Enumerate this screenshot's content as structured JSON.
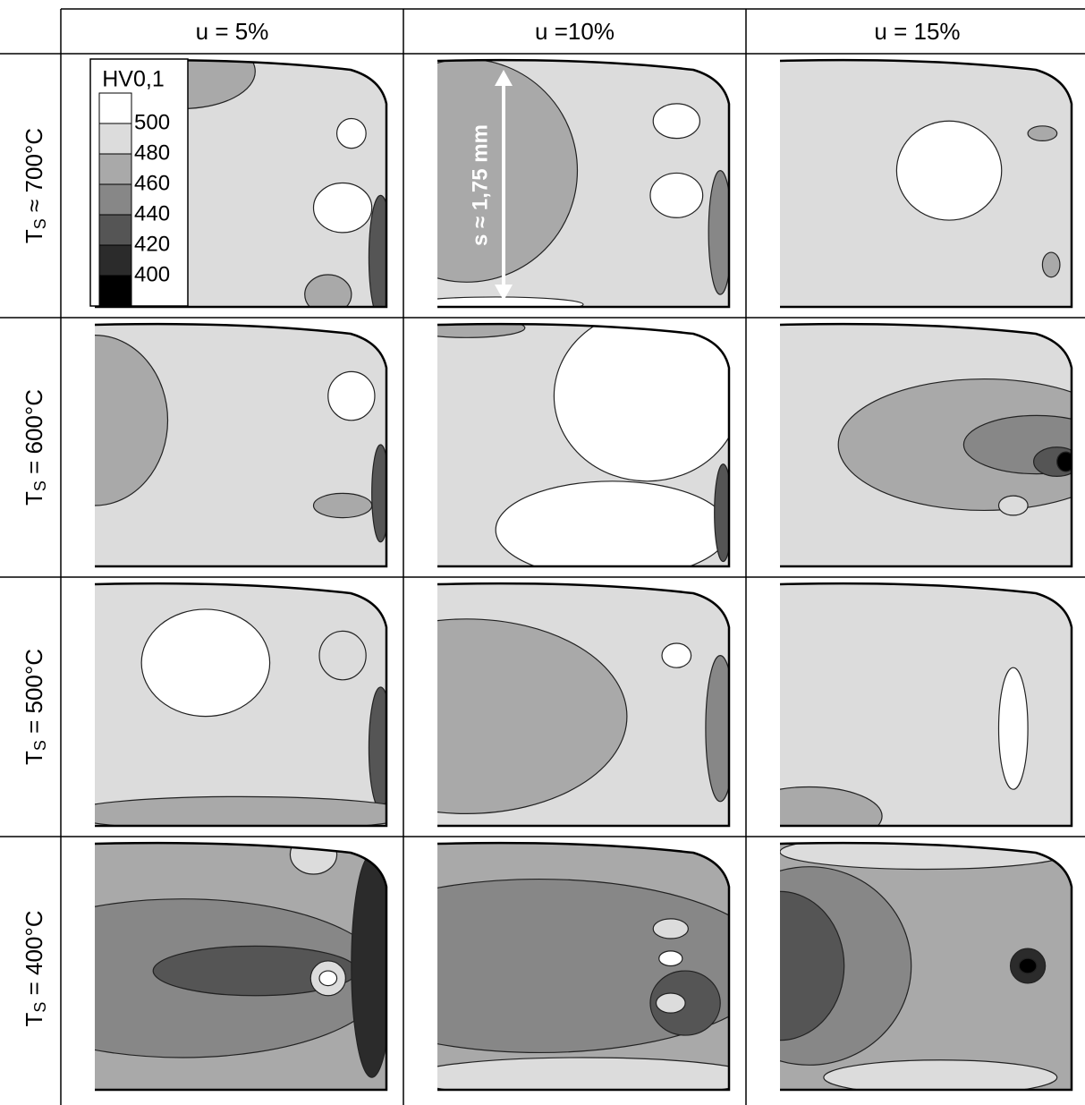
{
  "columns": [
    "u = 5%",
    "u =10%",
    "u = 15%"
  ],
  "rows": [
    {
      "prefix": "T",
      "subscript": "S",
      "suffix": " ≈ 700°C"
    },
    {
      "prefix": "T",
      "subscript": "S",
      "suffix": " = 600°C"
    },
    {
      "prefix": "T",
      "subscript": "S",
      "suffix": " = 500°C"
    },
    {
      "prefix": "T",
      "subscript": "S",
      "suffix": " = 400°C"
    }
  ],
  "legend": {
    "title": "HV0,1",
    "levels": [
      500,
      480,
      460,
      440,
      420,
      400
    ],
    "colors": [
      "#ffffff",
      "#dcdcdc",
      "#a9a9a9",
      "#878787",
      "#555555",
      "#2b2b2b",
      "#000000"
    ]
  },
  "annotation": "s ≈ 1,75 mm"
}
